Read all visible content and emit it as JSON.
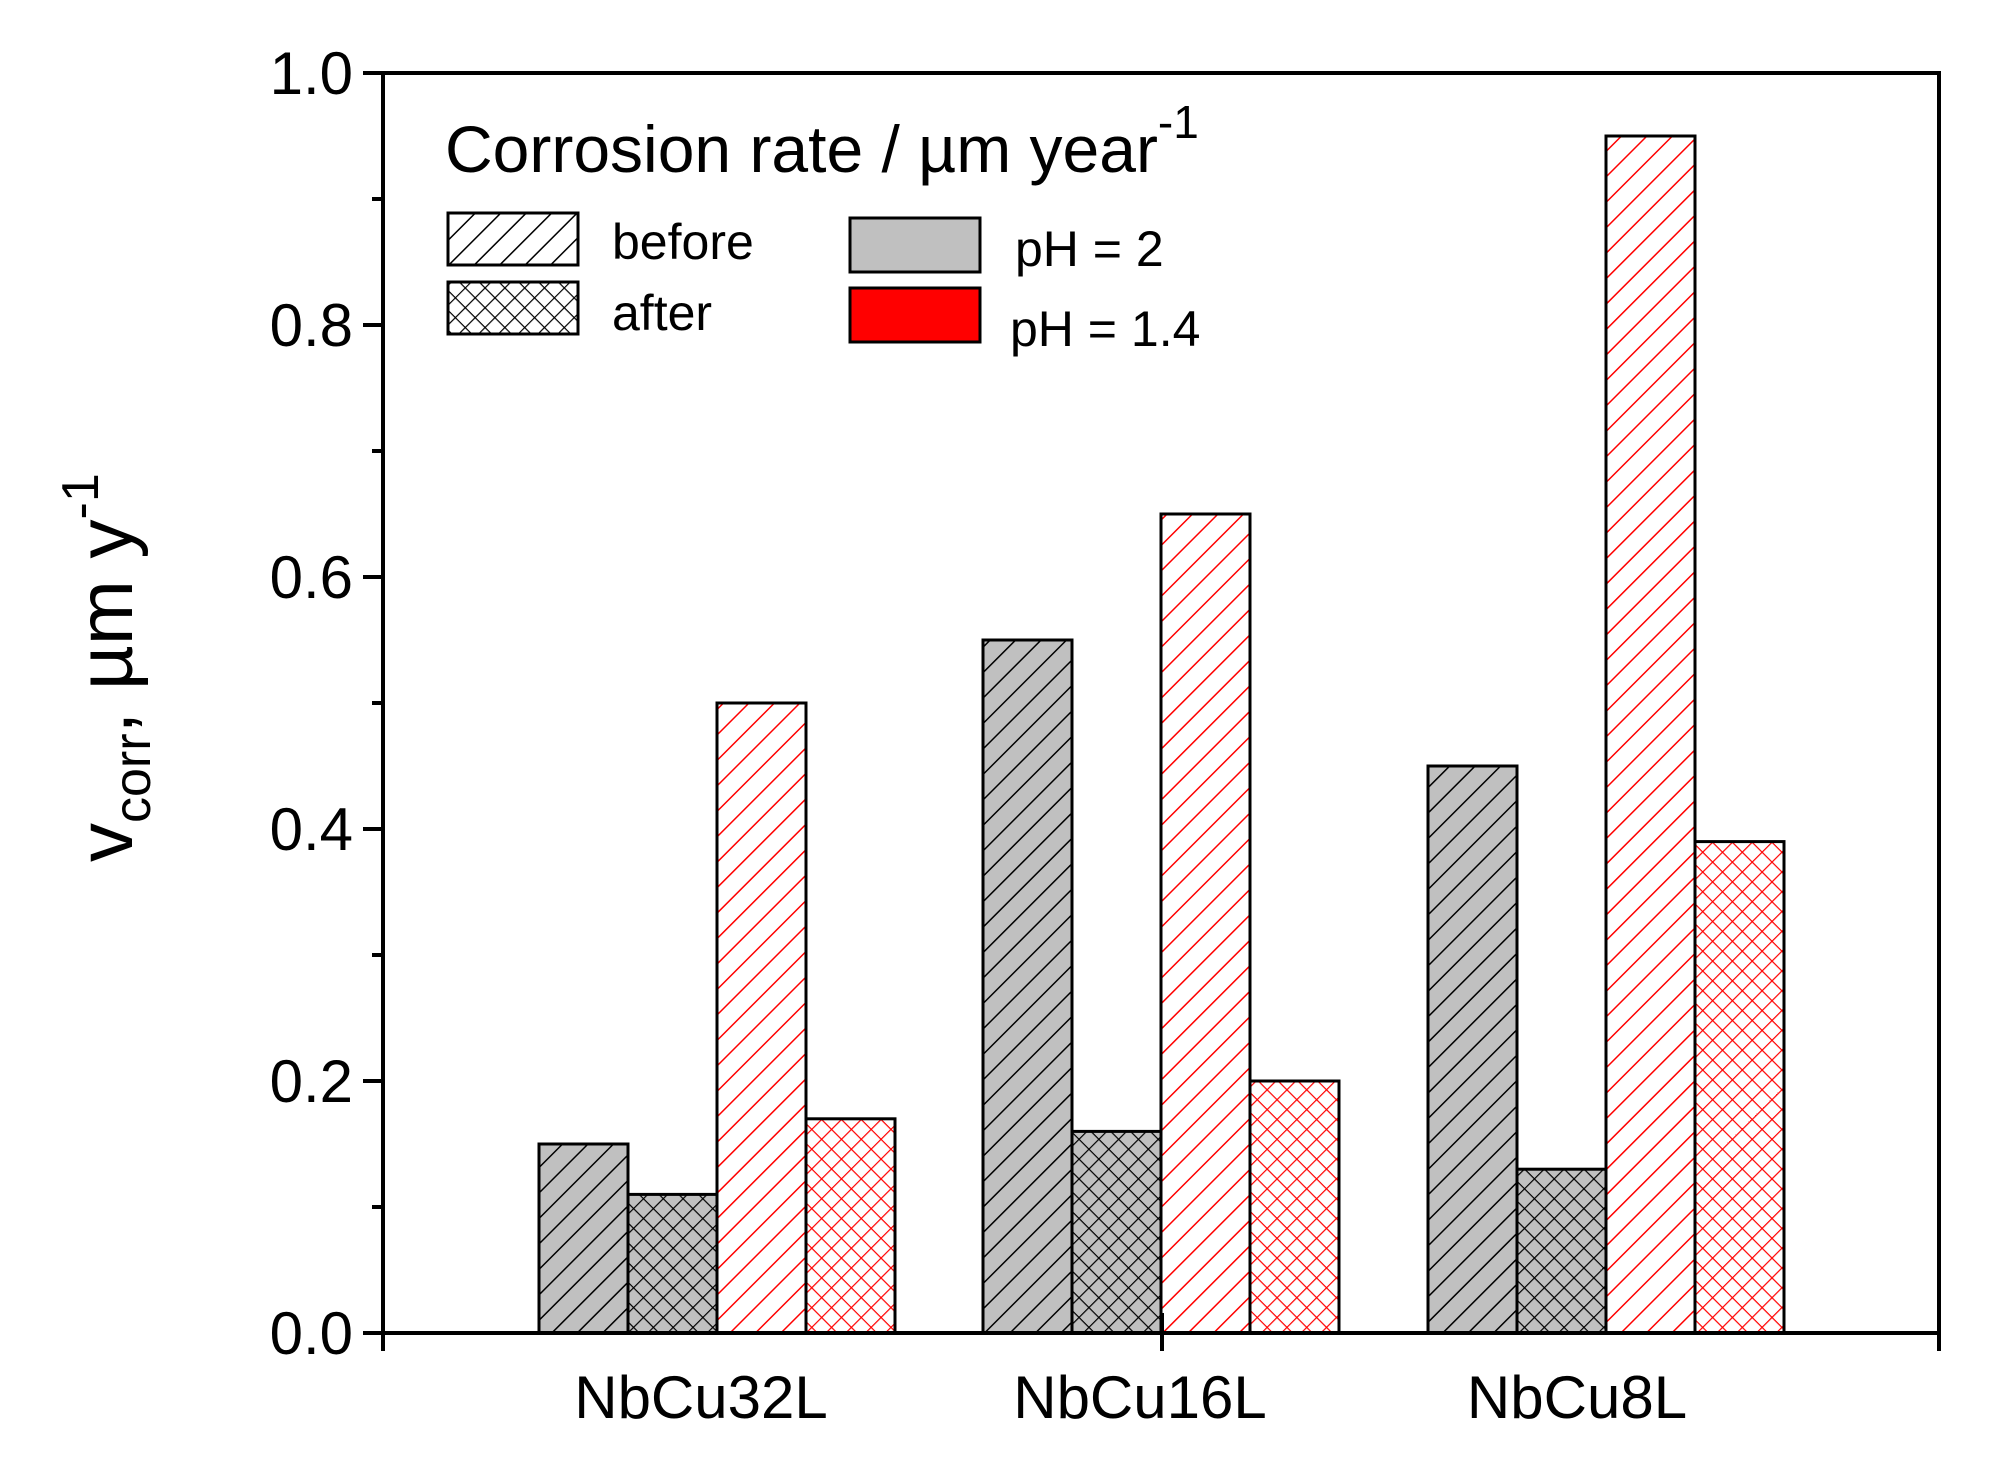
{
  "chart_data": {
    "type": "bar",
    "title": "",
    "xlabel": "",
    "ylabel": {
      "main": "v",
      "sub": "corr",
      "rest": ", µm y",
      "sup": "-1"
    },
    "ylim": [
      0.0,
      1.0
    ],
    "yticks": [
      "0.0",
      "0.2",
      "0.4",
      "0.6",
      "0.8",
      "1.0"
    ],
    "categories": [
      "NbCu32L",
      "NbCu16L",
      "NbCu8L"
    ],
    "series": [
      {
        "name": "pH = 2, before",
        "ph": "pH = 2",
        "state": "before",
        "values": [
          0.15,
          0.55,
          0.45
        ]
      },
      {
        "name": "pH = 2, after",
        "ph": "pH = 2",
        "state": "after",
        "values": [
          0.11,
          0.16,
          0.13
        ]
      },
      {
        "name": "pH = 1.4, before",
        "ph": "pH = 1.4",
        "state": "before",
        "values": [
          0.5,
          0.65,
          0.95
        ]
      },
      {
        "name": "pH = 1.4, after",
        "ph": "pH = 1.4",
        "state": "after",
        "values": [
          0.17,
          0.2,
          0.39
        ]
      }
    ],
    "legend": {
      "title": "Corrosion rate / µm year",
      "title_sup": "-1",
      "pattern_entries": [
        "before",
        "after"
      ],
      "color_entries": [
        "pH = 2",
        "pH = 1.4"
      ],
      "placement": "top-left"
    },
    "colors": {
      "ph2": "#c0c0c0",
      "ph14": "#ff0000",
      "ph14_fill": "#ffffff",
      "axis": "#000000"
    }
  }
}
